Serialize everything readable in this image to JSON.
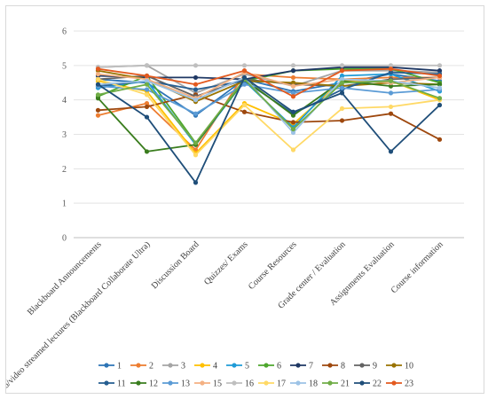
{
  "chart_data": {
    "type": "line",
    "title": "",
    "xlabel": "",
    "ylabel": "",
    "ylim": [
      0,
      6
    ],
    "yticks": [
      0,
      1,
      2,
      3,
      4,
      5,
      6
    ],
    "grid": "horizontal",
    "legend_position": "bottom",
    "categories": [
      "Blackboard Announcements",
      "Audio/video streamed lectures (Blackboard Collaborate Ultra)",
      "Discussion Board",
      "Quizzes/ Exams",
      "Course Resources",
      "Grade center / Evaluation",
      "Assignments Evaluation",
      "Course information"
    ],
    "series": [
      {
        "name": "1",
        "color": "#2E75B6",
        "values": [
          4.6,
          4.5,
          3.55,
          4.6,
          4.25,
          4.5,
          4.75,
          4.55
        ]
      },
      {
        "name": "2",
        "color": "#ED7D31",
        "values": [
          3.55,
          3.9,
          2.55,
          4.75,
          4.65,
          4.6,
          4.65,
          4.65
        ]
      },
      {
        "name": "3",
        "color": "#A5A5A5",
        "values": [
          4.95,
          5.0,
          4.2,
          4.75,
          4.4,
          4.85,
          4.85,
          4.8
        ]
      },
      {
        "name": "4",
        "color": "#FFC000",
        "values": [
          4.55,
          4.25,
          2.45,
          3.9,
          3.3,
          4.55,
          4.55,
          4.0
        ]
      },
      {
        "name": "5",
        "color": "#1F9BD7",
        "values": [
          4.35,
          4.55,
          2.7,
          4.55,
          3.2,
          4.7,
          4.75,
          4.25
        ]
      },
      {
        "name": "6",
        "color": "#4EA72E",
        "values": [
          4.1,
          4.7,
          2.75,
          4.55,
          4.85,
          4.9,
          4.9,
          4.5
        ]
      },
      {
        "name": "7",
        "color": "#1F3864",
        "values": [
          4.7,
          4.65,
          4.65,
          4.6,
          4.85,
          4.95,
          4.95,
          4.85
        ]
      },
      {
        "name": "8",
        "color": "#9E480E",
        "values": [
          3.7,
          3.8,
          4.15,
          3.65,
          3.35,
          3.4,
          3.6,
          2.85
        ]
      },
      {
        "name": "9",
        "color": "#636363",
        "values": [
          4.6,
          4.7,
          4.1,
          4.6,
          4.45,
          4.4,
          4.6,
          4.65
        ]
      },
      {
        "name": "10",
        "color": "#997300",
        "values": [
          4.85,
          4.6,
          3.95,
          4.55,
          4.5,
          4.4,
          4.5,
          4.45
        ]
      },
      {
        "name": "11",
        "color": "#255E91",
        "values": [
          4.4,
          4.55,
          4.3,
          4.55,
          3.6,
          4.3,
          4.8,
          4.75
        ]
      },
      {
        "name": "12",
        "color": "#3A7D1E",
        "values": [
          4.05,
          2.5,
          2.7,
          4.6,
          3.55,
          4.55,
          4.4,
          4.45
        ]
      },
      {
        "name": "13",
        "color": "#5B9BD5",
        "values": [
          4.4,
          4.3,
          3.6,
          4.45,
          4.2,
          4.35,
          4.2,
          4.3
        ]
      },
      {
        "name": "15",
        "color": "#F4B183",
        "values": [
          4.75,
          4.6,
          4.05,
          4.8,
          4.4,
          4.6,
          4.5,
          4.65
        ]
      },
      {
        "name": "16",
        "color": "#BFBFBF",
        "values": [
          4.95,
          5.0,
          5.0,
          5.0,
          5.0,
          5.0,
          5.0,
          5.0
        ]
      },
      {
        "name": "17",
        "color": "#FFD966",
        "values": [
          4.6,
          4.15,
          2.4,
          3.85,
          2.55,
          3.75,
          3.8,
          4.0
        ]
      },
      {
        "name": "18",
        "color": "#9DC3E6",
        "values": [
          4.45,
          4.55,
          4.0,
          4.65,
          3.05,
          4.6,
          4.55,
          4.35
        ]
      },
      {
        "name": "21",
        "color": "#70AD47",
        "values": [
          4.15,
          4.45,
          2.75,
          4.6,
          3.15,
          4.5,
          4.55,
          4.05
        ]
      },
      {
        "name": "22",
        "color": "#1F4E79",
        "values": [
          4.45,
          3.5,
          1.6,
          4.65,
          3.65,
          4.2,
          2.5,
          3.85
        ]
      },
      {
        "name": "23",
        "color": "#E35A1F",
        "values": [
          4.9,
          4.7,
          4.45,
          4.85,
          4.1,
          4.85,
          4.9,
          4.7
        ]
      }
    ]
  }
}
